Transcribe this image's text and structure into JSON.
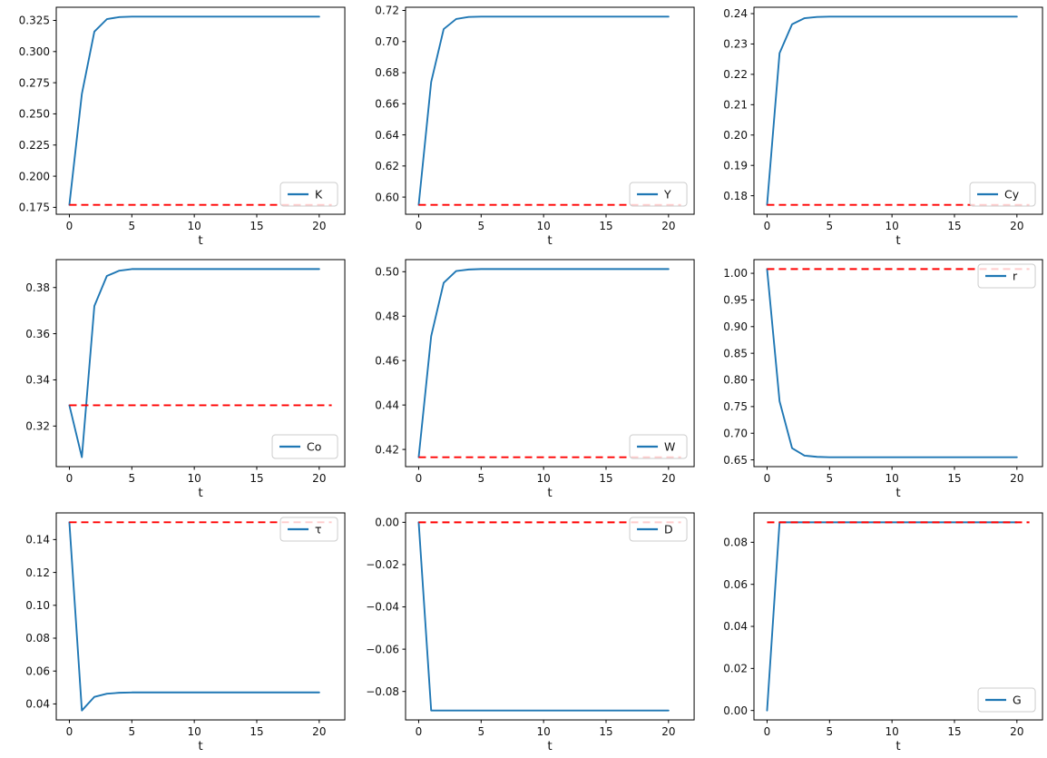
{
  "figure": {
    "background": "#ffffff",
    "text_color": "#111111"
  },
  "chart_data": {
    "type": "line",
    "title": "",
    "layout": {
      "rows": 3,
      "cols": 3,
      "grid_lines": false
    },
    "x_label": "t",
    "x": [
      0,
      1,
      2,
      3,
      4,
      5,
      6,
      7,
      8,
      9,
      10,
      11,
      12,
      13,
      14,
      15,
      16,
      17,
      18,
      19,
      20
    ],
    "xticks": [
      0,
      5,
      10,
      15,
      20
    ],
    "xtick_labels": [
      "0",
      "5",
      "10",
      "15",
      "20"
    ],
    "xlim": [
      -1.05,
      22.05
    ],
    "colors": {
      "path_line": "#1f77b4",
      "steady_state_line": "#ff0000",
      "legend_border": "#cccccc",
      "axes": "#000000"
    },
    "series_meaning": {
      "solid_blue": "transition path",
      "dashed_red": "steady state reference"
    },
    "subplots": [
      {
        "name": "K",
        "legend": "K",
        "legend_loc": "lower-right",
        "ylim": [
          0.16945,
          0.33555
        ],
        "yticks": [
          0.175,
          0.2,
          0.225,
          0.25,
          0.275,
          0.3,
          0.325
        ],
        "ytick_labels": [
          "0.175",
          "0.200",
          "0.225",
          "0.250",
          "0.275",
          "0.300",
          "0.325"
        ],
        "steady_state": 0.177,
        "steady_state_x": [
          0,
          21
        ],
        "values": [
          0.177,
          0.266,
          0.316,
          0.326,
          0.3277,
          0.328,
          0.328,
          0.328,
          0.328,
          0.328,
          0.328,
          0.328,
          0.328,
          0.328,
          0.328,
          0.328,
          0.328,
          0.328,
          0.328,
          0.328,
          0.328
        ]
      },
      {
        "name": "Y",
        "legend": "Y",
        "legend_loc": "lower-right",
        "ylim": [
          0.58895,
          0.72205
        ],
        "yticks": [
          0.6,
          0.62,
          0.64,
          0.66,
          0.68,
          0.7,
          0.72
        ],
        "ytick_labels": [
          "0.60",
          "0.62",
          "0.64",
          "0.66",
          "0.68",
          "0.70",
          "0.72"
        ],
        "steady_state": 0.595,
        "steady_state_x": [
          0,
          21
        ],
        "values": [
          0.595,
          0.674,
          0.708,
          0.7145,
          0.7158,
          0.716,
          0.716,
          0.716,
          0.716,
          0.716,
          0.716,
          0.716,
          0.716,
          0.716,
          0.716,
          0.716,
          0.716,
          0.716,
          0.716,
          0.716,
          0.716
        ]
      },
      {
        "name": "Cy",
        "legend": "Cy",
        "legend_loc": "lower-right",
        "ylim": [
          0.1739,
          0.2421
        ],
        "yticks": [
          0.18,
          0.19,
          0.2,
          0.21,
          0.22,
          0.23,
          0.24
        ],
        "ytick_labels": [
          "0.18",
          "0.19",
          "0.20",
          "0.21",
          "0.22",
          "0.23",
          "0.24"
        ],
        "steady_state": 0.177,
        "steady_state_x": [
          0,
          21
        ],
        "values": [
          0.177,
          0.227,
          0.2365,
          0.2385,
          0.2389,
          0.239,
          0.239,
          0.239,
          0.239,
          0.239,
          0.239,
          0.239,
          0.239,
          0.239,
          0.239,
          0.239,
          0.239,
          0.239,
          0.239,
          0.239,
          0.239
        ]
      },
      {
        "name": "Co",
        "legend": "Co",
        "legend_loc": "lower-right",
        "ylim": [
          0.30243,
          0.39208
        ],
        "yticks": [
          0.32,
          0.34,
          0.36,
          0.38
        ],
        "ytick_labels": [
          "0.32",
          "0.34",
          "0.36",
          "0.38"
        ],
        "steady_state": 0.329,
        "steady_state_x": [
          0,
          21
        ],
        "values": [
          0.329,
          0.3065,
          0.372,
          0.385,
          0.3873,
          0.388,
          0.388,
          0.388,
          0.388,
          0.388,
          0.388,
          0.388,
          0.388,
          0.388,
          0.388,
          0.388,
          0.388,
          0.388,
          0.388,
          0.388,
          0.388
        ]
      },
      {
        "name": "W",
        "legend": "W",
        "legend_loc": "lower-right",
        "ylim": [
          0.41227,
          0.50544
        ],
        "yticks": [
          0.42,
          0.44,
          0.46,
          0.48,
          0.5
        ],
        "ytick_labels": [
          "0.42",
          "0.44",
          "0.46",
          "0.48",
          "0.50"
        ],
        "steady_state": 0.4165,
        "steady_state_x": [
          0,
          21
        ],
        "values": [
          0.4165,
          0.471,
          0.495,
          0.5003,
          0.501,
          0.5012,
          0.5012,
          0.5012,
          0.5012,
          0.5012,
          0.5012,
          0.5012,
          0.5012,
          0.5012,
          0.5012,
          0.5012,
          0.5012,
          0.5012,
          0.5012,
          0.5012,
          0.5012
        ]
      },
      {
        "name": "r",
        "legend": "r",
        "legend_loc": "upper-right",
        "ylim": [
          0.63735,
          1.02565
        ],
        "yticks": [
          0.65,
          0.7,
          0.75,
          0.8,
          0.85,
          0.9,
          0.95,
          1.0
        ],
        "ytick_labels": [
          "0.65",
          "0.70",
          "0.75",
          "0.80",
          "0.85",
          "0.90",
          "0.95",
          "1.00"
        ],
        "steady_state": 1.008,
        "steady_state_x": [
          0,
          21
        ],
        "values": [
          1.008,
          0.76,
          0.672,
          0.658,
          0.6557,
          0.655,
          0.655,
          0.655,
          0.655,
          0.655,
          0.655,
          0.655,
          0.655,
          0.655,
          0.655,
          0.655,
          0.655,
          0.655,
          0.655,
          0.655,
          0.655
        ]
      },
      {
        "name": "tau",
        "legend": "τ",
        "legend_loc": "upper-right",
        "ylim": [
          0.03028,
          0.15622
        ],
        "yticks": [
          0.04,
          0.06,
          0.08,
          0.1,
          0.12,
          0.14
        ],
        "ytick_labels": [
          "0.04",
          "0.06",
          "0.08",
          "0.10",
          "0.12",
          "0.14"
        ],
        "steady_state": 0.1505,
        "steady_state_x": [
          0,
          21
        ],
        "values": [
          0.1505,
          0.036,
          0.0443,
          0.0462,
          0.0468,
          0.047,
          0.047,
          0.047,
          0.047,
          0.047,
          0.047,
          0.047,
          0.047,
          0.047,
          0.047,
          0.047,
          0.047,
          0.047,
          0.047,
          0.047,
          0.047
        ]
      },
      {
        "name": "D",
        "legend": "D",
        "legend_loc": "upper-right",
        "ylim": [
          -0.09345,
          0.00445
        ],
        "yticks": [
          -0.08,
          -0.06,
          -0.04,
          -0.02,
          0.0
        ],
        "ytick_labels": [
          "−0.08",
          "−0.06",
          "−0.04",
          "−0.02",
          "0.00"
        ],
        "steady_state": 0.0,
        "steady_state_x": [
          0,
          21
        ],
        "values": [
          0.0,
          -0.089,
          -0.089,
          -0.089,
          -0.089,
          -0.089,
          -0.089,
          -0.089,
          -0.089,
          -0.089,
          -0.089,
          -0.089,
          -0.089,
          -0.089,
          -0.089,
          -0.089,
          -0.089,
          -0.089,
          -0.089,
          -0.089,
          -0.089
        ]
      },
      {
        "name": "G",
        "legend": "G",
        "legend_loc": "lower-right",
        "ylim": [
          -0.004475,
          0.093975
        ],
        "yticks": [
          0.0,
          0.02,
          0.04,
          0.06,
          0.08
        ],
        "ytick_labels": [
          "0.00",
          "0.02",
          "0.04",
          "0.06",
          "0.08"
        ],
        "steady_state": 0.0895,
        "steady_state_x": [
          0,
          21
        ],
        "values": [
          0.0,
          0.0895,
          0.0895,
          0.0895,
          0.0895,
          0.0895,
          0.0895,
          0.0895,
          0.0895,
          0.0895,
          0.0895,
          0.0895,
          0.0895,
          0.0895,
          0.0895,
          0.0895,
          0.0895,
          0.0895,
          0.0895,
          0.0895,
          0.0895
        ]
      }
    ]
  }
}
